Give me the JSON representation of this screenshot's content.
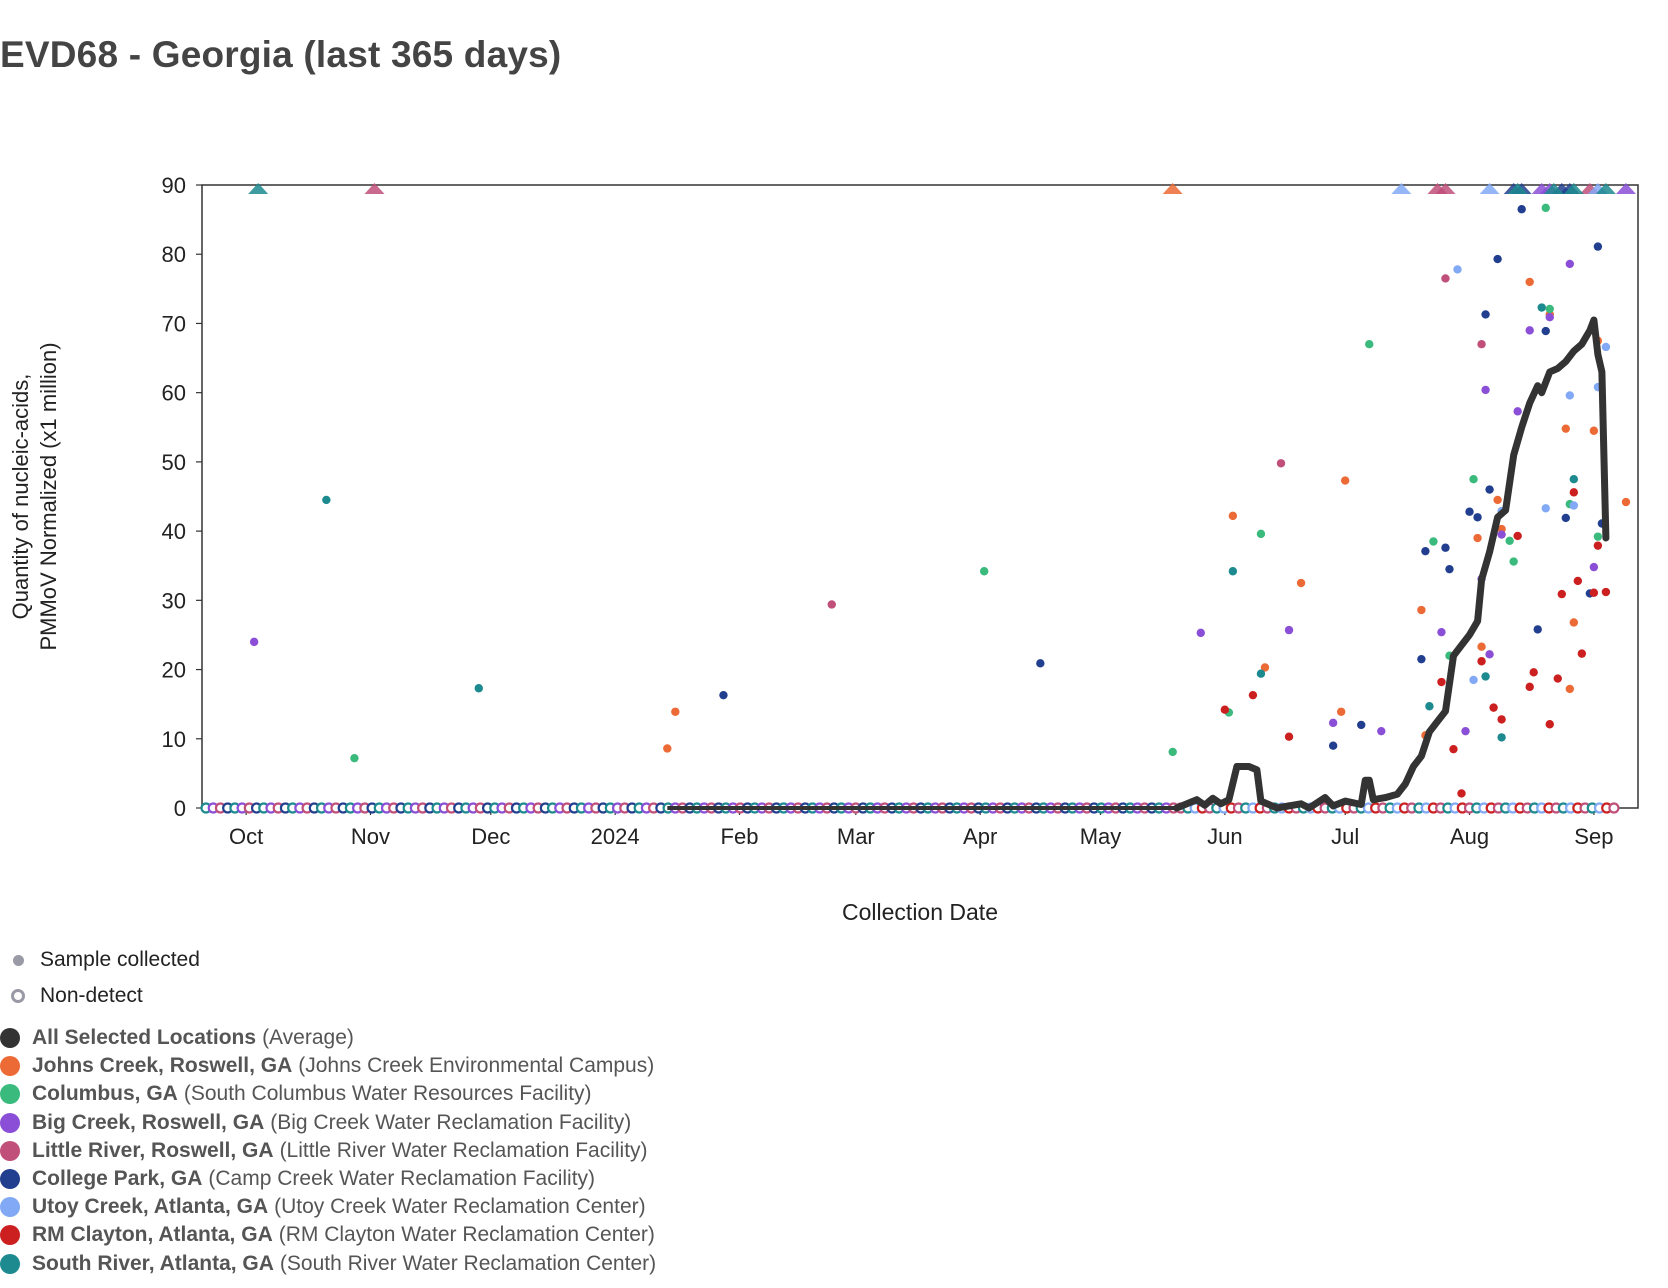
{
  "title": "EVD68 - Georgia (last 365 days)",
  "chart_data": {
    "type": "scatter",
    "title": "EVD68 - Georgia (last 365 days)",
    "xlabel": "Collection Date",
    "ylabel_lines": [
      "Quantity of nucleic-acids,",
      "PMMoV Normalized (x1 million)"
    ],
    "x_range": [
      "2023-09-20",
      "2024-09-12"
    ],
    "ylim": [
      0,
      90
    ],
    "y_ticks": [
      0,
      10,
      20,
      30,
      40,
      50,
      60,
      70,
      80,
      90
    ],
    "x_ticks": [
      {
        "date": "2023-10-01",
        "label": "Oct"
      },
      {
        "date": "2023-11-01",
        "label": "Nov"
      },
      {
        "date": "2023-12-01",
        "label": "Dec"
      },
      {
        "date": "2024-01-01",
        "label": "2024"
      },
      {
        "date": "2024-02-01",
        "label": "Feb"
      },
      {
        "date": "2024-03-01",
        "label": "Mar"
      },
      {
        "date": "2024-04-01",
        "label": "Apr"
      },
      {
        "date": "2024-05-01",
        "label": "May"
      },
      {
        "date": "2024-06-01",
        "label": "Jun"
      },
      {
        "date": "2024-07-01",
        "label": "Jul"
      },
      {
        "date": "2024-08-01",
        "label": "Aug"
      },
      {
        "date": "2024-09-01",
        "label": "Sep"
      }
    ],
    "grid": false,
    "legend_placement": "bottom-left",
    "marker_legend": [
      {
        "kind": "filled",
        "label": "Sample collected"
      },
      {
        "kind": "hollow",
        "label": "Non-detect"
      }
    ],
    "series": [
      {
        "name": "All Selected Locations",
        "detail": "(Average)",
        "color": "#333333",
        "line": [
          [
            "2024-05-20",
            0
          ],
          [
            "2024-05-25",
            1.2
          ],
          [
            "2024-05-27",
            0.4
          ],
          [
            "2024-05-29",
            1.4
          ],
          [
            "2024-05-31",
            0.6
          ],
          [
            "2024-06-02",
            1.2
          ],
          [
            "2024-06-04",
            6
          ],
          [
            "2024-06-07",
            6
          ],
          [
            "2024-06-09",
            5.5
          ],
          [
            "2024-06-10",
            1
          ],
          [
            "2024-06-14",
            0
          ],
          [
            "2024-06-20",
            0.6
          ],
          [
            "2024-06-22",
            0
          ],
          [
            "2024-06-26",
            1.5
          ],
          [
            "2024-06-28",
            0.3
          ],
          [
            "2024-07-01",
            1
          ],
          [
            "2024-07-05",
            0.5
          ],
          [
            "2024-07-06",
            4
          ],
          [
            "2024-07-07",
            4
          ],
          [
            "2024-07-08",
            1.2
          ],
          [
            "2024-07-11",
            1.5
          ],
          [
            "2024-07-14",
            2
          ],
          [
            "2024-07-16",
            3.5
          ],
          [
            "2024-07-18",
            6
          ],
          [
            "2024-07-20",
            7.5
          ],
          [
            "2024-07-22",
            11
          ],
          [
            "2024-07-24",
            12.5
          ],
          [
            "2024-07-26",
            14
          ],
          [
            "2024-07-28",
            22
          ],
          [
            "2024-07-30",
            23.5
          ],
          [
            "2024-08-01",
            25
          ],
          [
            "2024-08-03",
            27
          ],
          [
            "2024-08-04",
            33
          ],
          [
            "2024-08-06",
            37
          ],
          [
            "2024-08-08",
            42
          ],
          [
            "2024-08-10",
            43
          ],
          [
            "2024-08-12",
            51
          ],
          [
            "2024-08-14",
            55
          ],
          [
            "2024-08-16",
            58.5
          ],
          [
            "2024-08-18",
            61
          ],
          [
            "2024-08-19",
            60
          ],
          [
            "2024-08-21",
            63
          ],
          [
            "2024-08-23",
            63.5
          ],
          [
            "2024-08-25",
            64.5
          ],
          [
            "2024-08-27",
            66
          ],
          [
            "2024-08-29",
            67
          ],
          [
            "2024-08-31",
            69
          ],
          [
            "2024-09-01",
            70.5
          ],
          [
            "2024-09-02",
            65.5
          ],
          [
            "2024-09-03",
            63
          ],
          [
            "2024-09-04",
            39
          ]
        ]
      },
      {
        "name": "Johns Creek, Roswell, GA",
        "detail": "(Johns Creek Environmental Campus)",
        "color": "#ec6a35",
        "points": [
          [
            "2024-01-14",
            8.6
          ],
          [
            "2024-01-16",
            13.9
          ],
          [
            "2024-06-03",
            42.2
          ],
          [
            "2024-06-11",
            20.3
          ],
          [
            "2024-06-20",
            32.5
          ],
          [
            "2024-06-30",
            13.9
          ],
          [
            "2024-07-01",
            47.3
          ],
          [
            "2024-07-20",
            28.6
          ],
          [
            "2024-07-21",
            10.5
          ],
          [
            "2024-08-03",
            39
          ],
          [
            "2024-08-04",
            23.3
          ],
          [
            "2024-08-08",
            44.5
          ],
          [
            "2024-08-09",
            40.3
          ],
          [
            "2024-08-16",
            76
          ],
          [
            "2024-08-21",
            71.3
          ],
          [
            "2024-08-25",
            54.8
          ],
          [
            "2024-08-26",
            17.2
          ],
          [
            "2024-08-27",
            26.8
          ],
          [
            "2024-09-01",
            54.5
          ],
          [
            "2024-09-02",
            67.5
          ],
          [
            "2024-09-09",
            44.2
          ]
        ],
        "flags": [
          "2024-05-19"
        ]
      },
      {
        "name": "Columbus, GA",
        "detail": "(South Columbus Water Resources Facility)",
        "color": "#3bba7d",
        "points": [
          [
            "2023-10-28",
            7.2
          ],
          [
            "2024-04-02",
            34.2
          ],
          [
            "2024-05-19",
            8.1
          ],
          [
            "2024-06-02",
            13.8
          ],
          [
            "2024-06-10",
            39.6
          ],
          [
            "2024-07-07",
            67
          ],
          [
            "2024-07-23",
            38.5
          ],
          [
            "2024-07-27",
            22
          ],
          [
            "2024-08-02",
            47.5
          ],
          [
            "2024-08-11",
            38.6
          ],
          [
            "2024-08-12",
            35.6
          ],
          [
            "2024-08-20",
            86.7
          ],
          [
            "2024-08-21",
            72.1
          ],
          [
            "2024-08-26",
            43.9
          ],
          [
            "2024-09-02",
            39.2
          ]
        ],
        "flags": []
      },
      {
        "name": "Big Creek, Roswell, GA",
        "detail": "(Big Creek Water Reclamation Facility)",
        "color": "#8a4fd6",
        "points": [
          [
            "2023-10-03",
            24
          ],
          [
            "2024-05-26",
            25.3
          ],
          [
            "2024-06-17",
            25.7
          ],
          [
            "2024-06-28",
            12.3
          ],
          [
            "2024-07-10",
            11.1
          ],
          [
            "2024-07-25",
            25.4
          ],
          [
            "2024-07-31",
            11.1
          ],
          [
            "2024-08-04",
            33.1
          ],
          [
            "2024-08-05",
            60.4
          ],
          [
            "2024-08-06",
            22.2
          ],
          [
            "2024-08-09",
            39.5
          ],
          [
            "2024-08-13",
            57.3
          ],
          [
            "2024-08-16",
            69
          ],
          [
            "2024-08-21",
            70.9
          ],
          [
            "2024-08-26",
            78.6
          ],
          [
            "2024-09-01",
            34.8
          ]
        ],
        "flags": [
          "2024-08-19",
          "2024-08-21",
          "2024-09-09"
        ]
      },
      {
        "name": "Little River, Roswell, GA",
        "detail": "(Little River Water Reclamation Facility)",
        "color": "#c04f7a",
        "points": [
          [
            "2024-02-24",
            29.4
          ],
          [
            "2024-06-15",
            49.8
          ],
          [
            "2024-07-26",
            76.5
          ],
          [
            "2024-08-04",
            67
          ]
        ],
        "flags": [
          "2023-11-02",
          "2024-07-24",
          "2024-07-26",
          "2024-08-31"
        ]
      },
      {
        "name": "College Park, GA",
        "detail": "(Camp Creek Water Reclamation Facility)",
        "color": "#213f8e",
        "points": [
          [
            "2024-01-28",
            16.3
          ],
          [
            "2024-04-16",
            20.9
          ],
          [
            "2024-06-28",
            9
          ],
          [
            "2024-07-05",
            12
          ],
          [
            "2024-07-20",
            21.5
          ],
          [
            "2024-07-21",
            37.1
          ],
          [
            "2024-07-26",
            37.6
          ],
          [
            "2024-07-27",
            34.5
          ],
          [
            "2024-08-01",
            42.8
          ],
          [
            "2024-08-03",
            42
          ],
          [
            "2024-08-05",
            71.3
          ],
          [
            "2024-08-06",
            46
          ],
          [
            "2024-08-08",
            79.3
          ],
          [
            "2024-08-14",
            86.5
          ],
          [
            "2024-08-18",
            25.8
          ],
          [
            "2024-08-20",
            68.9
          ],
          [
            "2024-08-25",
            41.9
          ],
          [
            "2024-08-31",
            31
          ],
          [
            "2024-09-02",
            81.1
          ],
          [
            "2024-09-03",
            41.1
          ]
        ],
        "flags": [
          "2024-08-12",
          "2024-08-14",
          "2024-08-24",
          "2024-08-26"
        ]
      },
      {
        "name": "Utoy Creek, Atlanta, GA",
        "detail": "(Utoy Creek Water Reclamation Center)",
        "color": "#82a9f5",
        "points": [
          [
            "2024-07-29",
            77.8
          ],
          [
            "2024-08-02",
            18.5
          ],
          [
            "2024-08-09",
            42.9
          ],
          [
            "2024-08-20",
            43.3
          ],
          [
            "2024-08-26",
            59.6
          ],
          [
            "2024-08-27",
            43.7
          ],
          [
            "2024-09-02",
            60.8
          ],
          [
            "2024-09-04",
            66.6
          ]
        ],
        "flags": [
          "2024-07-15",
          "2024-08-06",
          "2024-09-02"
        ]
      },
      {
        "name": "RM Clayton, Atlanta, GA",
        "detail": "(RM Clayton Water Reclamation Center)",
        "color": "#cc1f1f",
        "points": [
          [
            "2024-06-01",
            14.2
          ],
          [
            "2024-06-08",
            16.3
          ],
          [
            "2024-06-17",
            10.3
          ],
          [
            "2024-07-25",
            18.2
          ],
          [
            "2024-07-28",
            8.5
          ],
          [
            "2024-07-30",
            2.1
          ],
          [
            "2024-08-04",
            21.2
          ],
          [
            "2024-08-07",
            14.5
          ],
          [
            "2024-08-09",
            12.8
          ],
          [
            "2024-08-13",
            39.3
          ],
          [
            "2024-08-16",
            17.5
          ],
          [
            "2024-08-17",
            19.6
          ],
          [
            "2024-08-21",
            12.1
          ],
          [
            "2024-08-23",
            18.7
          ],
          [
            "2024-08-24",
            30.9
          ],
          [
            "2024-08-27",
            45.6
          ],
          [
            "2024-08-28",
            32.8
          ],
          [
            "2024-08-29",
            22.3
          ],
          [
            "2024-09-01",
            31.1
          ],
          [
            "2024-09-02",
            37.9
          ],
          [
            "2024-09-04",
            31.2
          ]
        ],
        "flags": []
      },
      {
        "name": "South River, Atlanta, GA",
        "detail": "(South River Water Reclamation Center)",
        "color": "#1c8a8e",
        "points": [
          [
            "2023-10-21",
            44.5
          ],
          [
            "2023-11-28",
            17.3
          ],
          [
            "2024-06-03",
            34.2
          ],
          [
            "2024-06-10",
            19.4
          ],
          [
            "2024-07-22",
            14.7
          ],
          [
            "2024-08-05",
            19
          ],
          [
            "2024-08-09",
            10.2
          ],
          [
            "2024-08-19",
            72.3
          ],
          [
            "2024-08-27",
            47.5
          ]
        ],
        "flags": [
          "2023-10-04",
          "2024-08-13",
          "2024-08-22",
          "2024-08-27",
          "2024-09-04"
        ]
      }
    ],
    "non_detect_ranges": [
      {
        "from": "2023-09-21",
        "to": "2024-05-20",
        "colors": [
          "#1c8a8e",
          "#8a4fd6",
          "#c04f7a",
          "#213f8e"
        ]
      },
      {
        "from": "2024-05-21",
        "to": "2024-09-06",
        "colors": [
          "#c04f7a",
          "#1c8a8e",
          "#82a9f5",
          "#cc1f1f"
        ]
      }
    ]
  }
}
